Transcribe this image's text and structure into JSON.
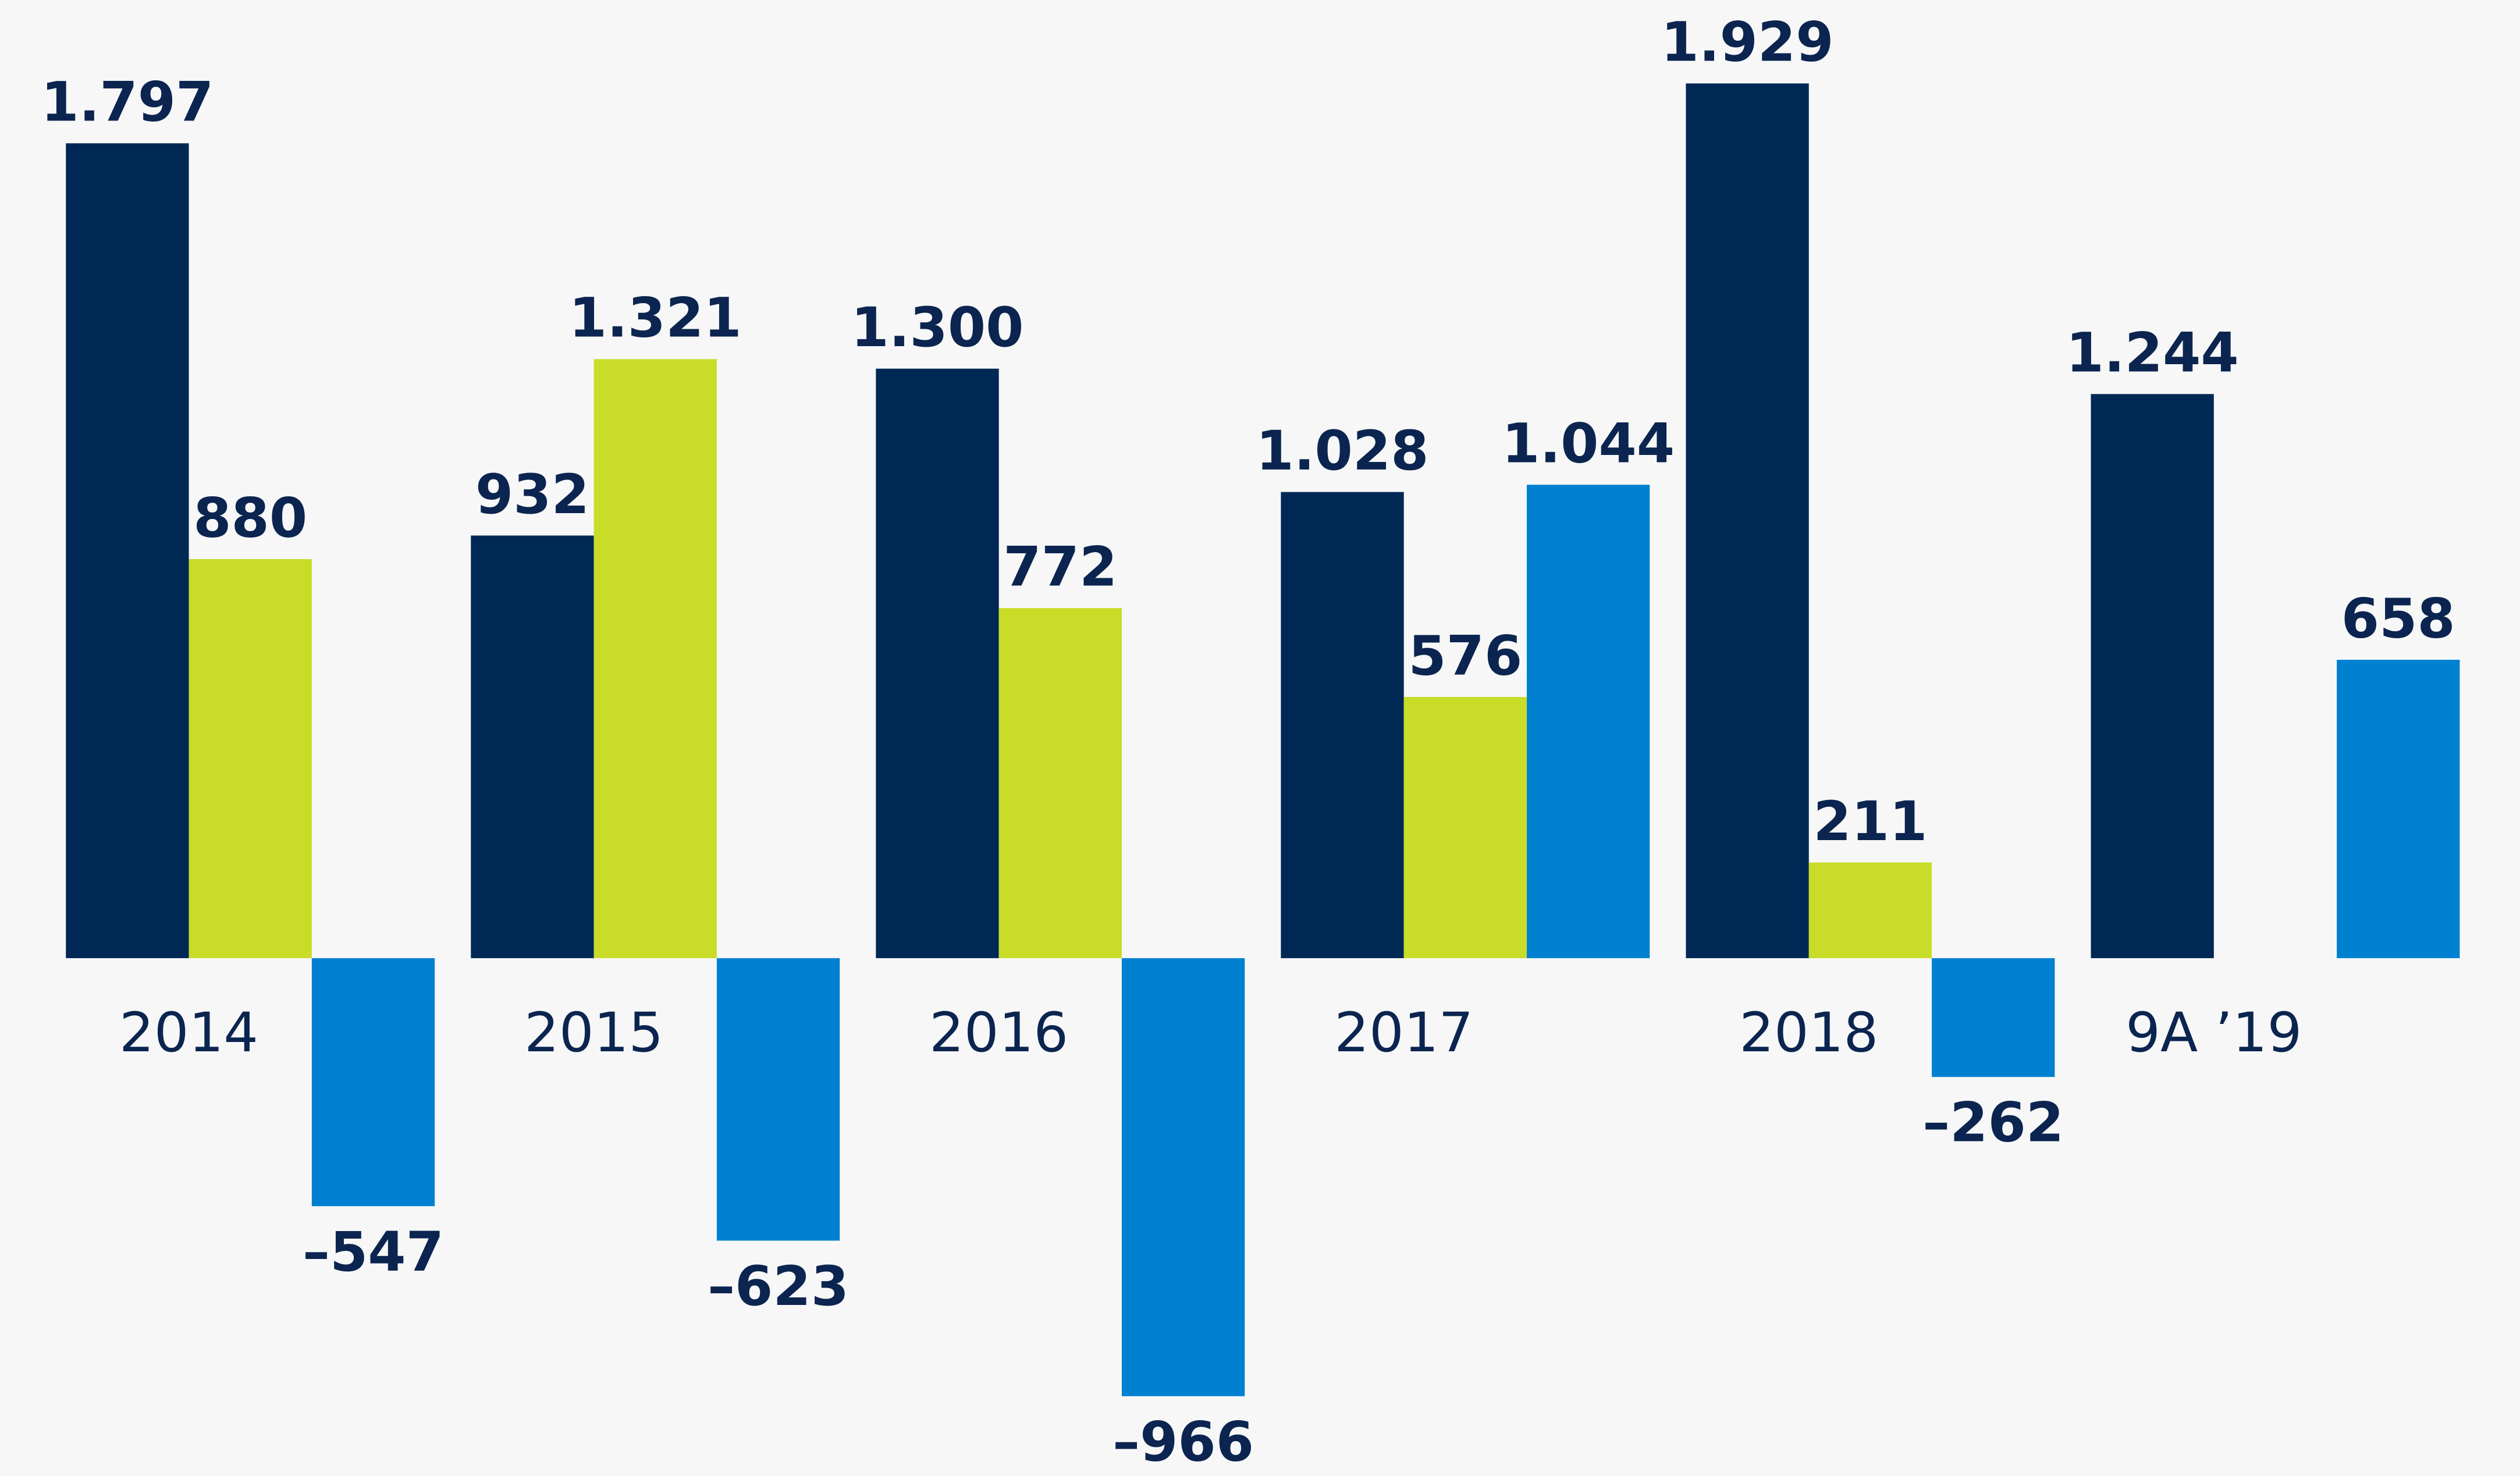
{
  "chart_data": {
    "type": "bar",
    "categories": [
      "2014",
      "2015",
      "2016",
      "2017",
      "2018",
      "9A ’19"
    ],
    "series": [
      {
        "color": "#002855",
        "values": [
          1797,
          932,
          1300,
          1028,
          1929,
          1244
        ],
        "value_labels": [
          "1.797",
          "932",
          "1.300",
          "1.028",
          "1.929",
          "1.244"
        ]
      },
      {
        "color": "#c8dc28",
        "values": [
          880,
          1321,
          772,
          576,
          211,
          null
        ],
        "value_labels": [
          "880",
          "1.321",
          "772",
          "576",
          "211",
          null
        ]
      },
      {
        "color": "#0080d0",
        "values": [
          -547,
          -623,
          -966,
          1044,
          -262,
          658
        ],
        "value_labels": [
          "–547",
          "–623",
          "–966",
          "1.044",
          "–262",
          "658"
        ]
      }
    ],
    "ylim": [
      -1142,
      2113
    ]
  }
}
